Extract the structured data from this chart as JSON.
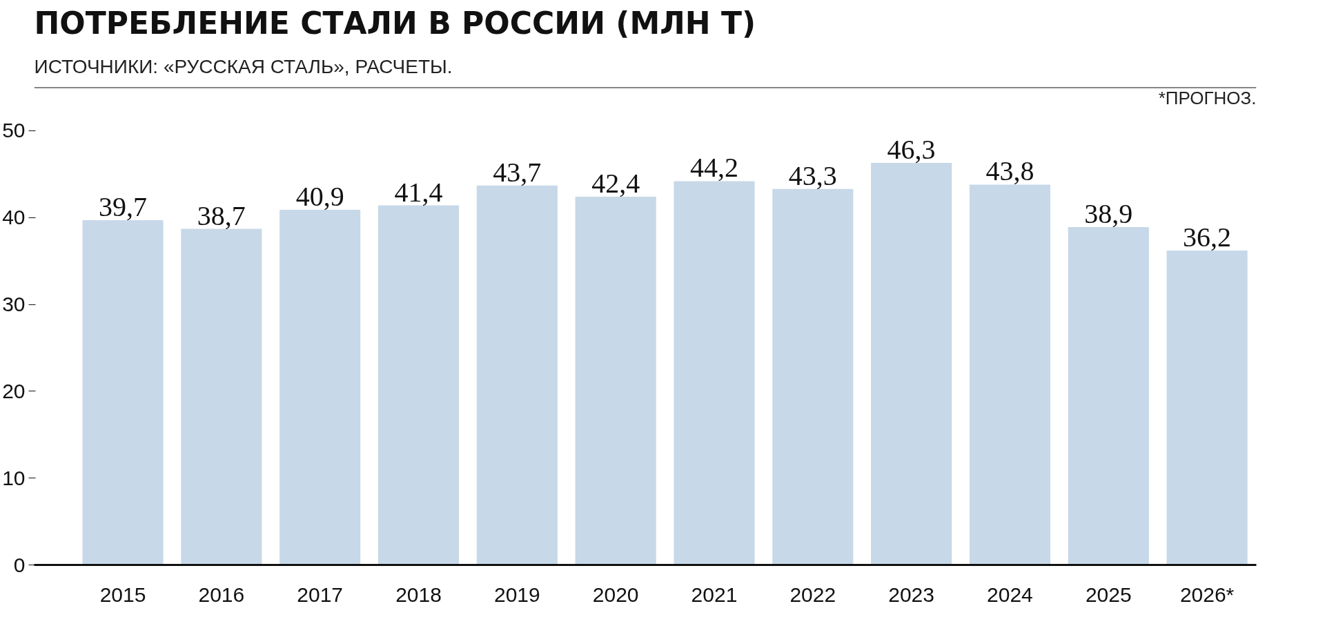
{
  "chart_data": {
    "type": "bar",
    "title": "ПОТРЕБЛЕНИЕ СТАЛИ В РОССИИ (МЛН Т)",
    "subtitle": "ИСТОЧНИКИ: «РУССКАЯ СТАЛЬ», РАСЧЕТЫ.",
    "annotations": [
      "*ПРОГНОЗ."
    ],
    "categories": [
      "2015",
      "2016",
      "2017",
      "2018",
      "2019",
      "2020",
      "2021",
      "2022",
      "2023",
      "2024",
      "2025",
      "2026*"
    ],
    "values": [
      39.7,
      38.7,
      40.9,
      41.4,
      43.7,
      42.4,
      44.2,
      43.3,
      46.3,
      43.8,
      38.9,
      36.2
    ],
    "value_labels": [
      "39,7",
      "38,7",
      "40,9",
      "41,4",
      "43,7",
      "42,4",
      "44,2",
      "43,3",
      "46,3",
      "43,8",
      "38,9",
      "36,2"
    ],
    "color": "#c7d8e8",
    "ylim": [
      0,
      55
    ],
    "yticks": [
      0,
      10,
      20,
      30,
      40,
      50
    ],
    "grid": false
  }
}
